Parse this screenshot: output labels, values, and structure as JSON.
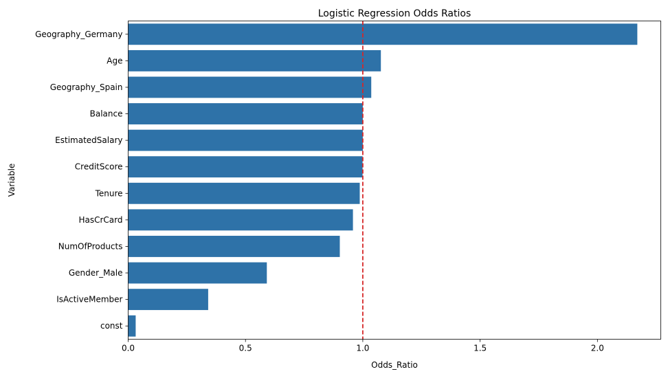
{
  "chart_data": {
    "type": "bar",
    "orientation": "horizontal",
    "title": "Logistic Regression Odds Ratios",
    "xlabel": "Odds_Ratio",
    "ylabel": "Variable",
    "categories": [
      "Geography_Germany",
      "Age",
      "Geography_Spain",
      "Balance",
      "EstimatedSalary",
      "CreditScore",
      "Tenure",
      "HasCrCard",
      "NumOfProducts",
      "Gender_Male",
      "IsActiveMember",
      "const"
    ],
    "values": [
      2.17,
      1.077,
      1.036,
      1.0,
      1.0,
      0.999,
      0.987,
      0.958,
      0.902,
      0.591,
      0.341,
      0.032
    ],
    "xlim": [
      0,
      2.27
    ],
    "xticks": [
      0.0,
      0.5,
      1.0,
      1.5,
      2.0
    ],
    "xtick_labels": [
      "0.0",
      "0.5",
      "1.0",
      "1.5",
      "2.0"
    ],
    "reference_line": {
      "x": 1.0,
      "color": "#d62728",
      "style": "dashed"
    },
    "bar_color": "#2e72a8",
    "grid": false,
    "legend": "none"
  }
}
